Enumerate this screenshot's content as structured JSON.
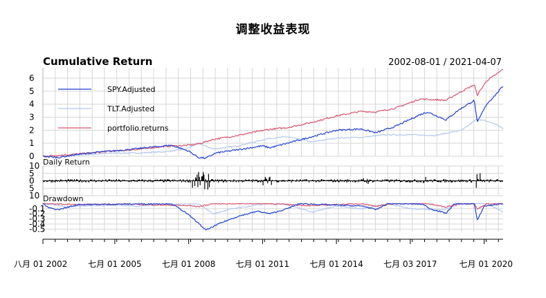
{
  "title": "调整收益表现",
  "chart_data": {
    "type": "line",
    "date_range": "2002-08-01 / 2021-04-07",
    "x_tick_labels": [
      "八月 01 2002",
      "七月 01 2005",
      "七月 01 2008",
      "七月 01 2011",
      "七月 01 2014",
      "七月 03 2017",
      "七月 01 2020"
    ],
    "x_tick_years": [
      2002.58,
      2005.5,
      2008.5,
      2011.5,
      2014.5,
      2017.5,
      2020.5
    ],
    "x_range": [
      2002.58,
      2021.27
    ],
    "colors": {
      "SPY.Adjusted": "#1f3fd0",
      "TLT.Adjusted": "#b4c8f0",
      "portfolio.returns": "#d9546e"
    },
    "panels": [
      {
        "title": "Cumulative Return",
        "ylim": [
          0,
          6.8
        ],
        "y_ticks": [
          0,
          1,
          2,
          3,
          4,
          5,
          6
        ],
        "y_tick_labels": [
          "0",
          "1",
          "2",
          "3",
          "4",
          "5",
          "6"
        ],
        "legend": "top-left",
        "grid": true,
        "series": [
          {
            "name": "SPY.Adjusted",
            "x": [
              2002.58,
              2003.2,
              2004.0,
              2005.0,
              2006.0,
              2007.0,
              2007.8,
              2008.5,
              2008.9,
              2009.2,
              2009.6,
              2010.5,
              2011.5,
              2011.8,
              2012.5,
              2013.5,
              2014.5,
              2015.5,
              2016.1,
              2016.9,
              2017.9,
              2018.2,
              2018.95,
              2019.5,
              2020.1,
              2020.22,
              2020.6,
              2021.0,
              2021.27
            ],
            "y": [
              0.0,
              -0.1,
              0.15,
              0.35,
              0.5,
              0.7,
              0.85,
              0.4,
              -0.1,
              -0.15,
              0.25,
              0.5,
              0.8,
              0.65,
              1.0,
              1.5,
              2.0,
              2.1,
              1.8,
              2.3,
              3.2,
              3.4,
              2.8,
              3.6,
              4.3,
              2.6,
              4.0,
              4.8,
              5.4
            ]
          },
          {
            "name": "TLT.Adjusted",
            "x": [
              2002.58,
              2003.5,
              2004.5,
              2005.5,
              2006.5,
              2007.5,
              2008.3,
              2008.9,
              2009.5,
              2010.5,
              2011.7,
              2012.5,
              2013.5,
              2014.5,
              2015.5,
              2016.5,
              2017.5,
              2018.5,
              2019.6,
              2020.2,
              2020.6,
              2021.0,
              2021.27
            ],
            "y": [
              0.0,
              0.05,
              0.15,
              0.25,
              0.25,
              0.35,
              0.5,
              1.0,
              0.55,
              0.8,
              1.35,
              1.5,
              1.1,
              1.4,
              1.45,
              1.65,
              1.65,
              1.6,
              2.0,
              2.85,
              2.7,
              2.45,
              2.1
            ]
          },
          {
            "name": "portfolio.returns",
            "x": [
              2002.58,
              2003.5,
              2004.5,
              2005.5,
              2006.5,
              2007.5,
              2008.5,
              2008.9,
              2009.5,
              2010.5,
              2011.7,
              2012.5,
              2013.5,
              2014.5,
              2015.5,
              2016.1,
              2016.9,
              2017.9,
              2018.95,
              2019.5,
              2020.1,
              2020.22,
              2020.6,
              2021.0,
              2021.27
            ],
            "y": [
              0.0,
              0.1,
              0.25,
              0.4,
              0.55,
              0.75,
              0.85,
              0.95,
              1.3,
              1.6,
              2.05,
              2.2,
              2.6,
              3.1,
              3.45,
              3.4,
              3.7,
              4.4,
              4.3,
              4.9,
              5.5,
              4.7,
              5.8,
              6.3,
              6.7
            ]
          }
        ]
      },
      {
        "title": "Daily Return",
        "ylim": [
          -10,
          10
        ],
        "y_ticks": [
          -10,
          -5,
          0,
          5,
          10
        ],
        "y_tick_labels": [
          "10",
          "5",
          "0",
          "5",
          "10"
        ]
      },
      {
        "title": "Drawdown",
        "ylim": [
          -0.55,
          0.02
        ],
        "y_ticks": [
          -0.1,
          -0.2,
          -0.3,
          -0.4,
          -0.5
        ],
        "y_tick_labels": [
          "-0.1",
          "-0.2",
          "-0.3",
          "-0.4",
          "-0.5"
        ],
        "series": [
          {
            "name": "SPY.Adjusted",
            "x": [
              2002.58,
              2002.8,
              2003.2,
              2004.0,
              2007.8,
              2008.3,
              2008.7,
              2009.2,
              2009.8,
              2010.5,
              2011.3,
              2011.8,
              2012.5,
              2013.0,
              2015.6,
              2016.1,
              2016.6,
              2018.0,
              2018.3,
              2018.95,
              2019.3,
              2020.1,
              2020.22,
              2020.5,
              2021.27
            ],
            "y": [
              0.0,
              -0.08,
              -0.12,
              -0.02,
              0.0,
              -0.15,
              -0.3,
              -0.52,
              -0.38,
              -0.25,
              -0.15,
              -0.2,
              -0.1,
              0.0,
              -0.05,
              -0.12,
              0.0,
              -0.01,
              -0.1,
              -0.19,
              0.0,
              0.0,
              -0.33,
              -0.05,
              0.0
            ]
          },
          {
            "name": "TLT.Adjusted",
            "x": [
              2002.58,
              2003.5,
              2004.5,
              2005.5,
              2006.5,
              2007.5,
              2008.9,
              2009.5,
              2010.3,
              2011.7,
              2012.5,
              2013.5,
              2014.5,
              2015.5,
              2016.6,
              2017.5,
              2018.8,
              2019.6,
              2020.6,
              2021.27
            ],
            "y": [
              0.0,
              -0.06,
              -0.04,
              -0.03,
              -0.05,
              -0.02,
              0.0,
              -0.2,
              -0.1,
              0.0,
              -0.02,
              -0.17,
              -0.05,
              -0.1,
              0.0,
              -0.1,
              -0.12,
              0.0,
              0.0,
              -0.16
            ]
          },
          {
            "name": "portfolio.returns",
            "x": [
              2002.58,
              2004.0,
              2006.0,
              2008.5,
              2008.9,
              2009.5,
              2011.7,
              2013.5,
              2015.5,
              2016.1,
              2016.9,
              2018.2,
              2018.95,
              2019.5,
              2020.1,
              2020.22,
              2020.6,
              2021.27
            ],
            "y": [
              0.0,
              -0.02,
              -0.01,
              -0.04,
              -0.06,
              0.0,
              0.0,
              -0.04,
              0.0,
              -0.05,
              0.0,
              0.0,
              -0.07,
              0.0,
              0.0,
              -0.11,
              0.0,
              0.0
            ]
          }
        ]
      }
    ]
  }
}
